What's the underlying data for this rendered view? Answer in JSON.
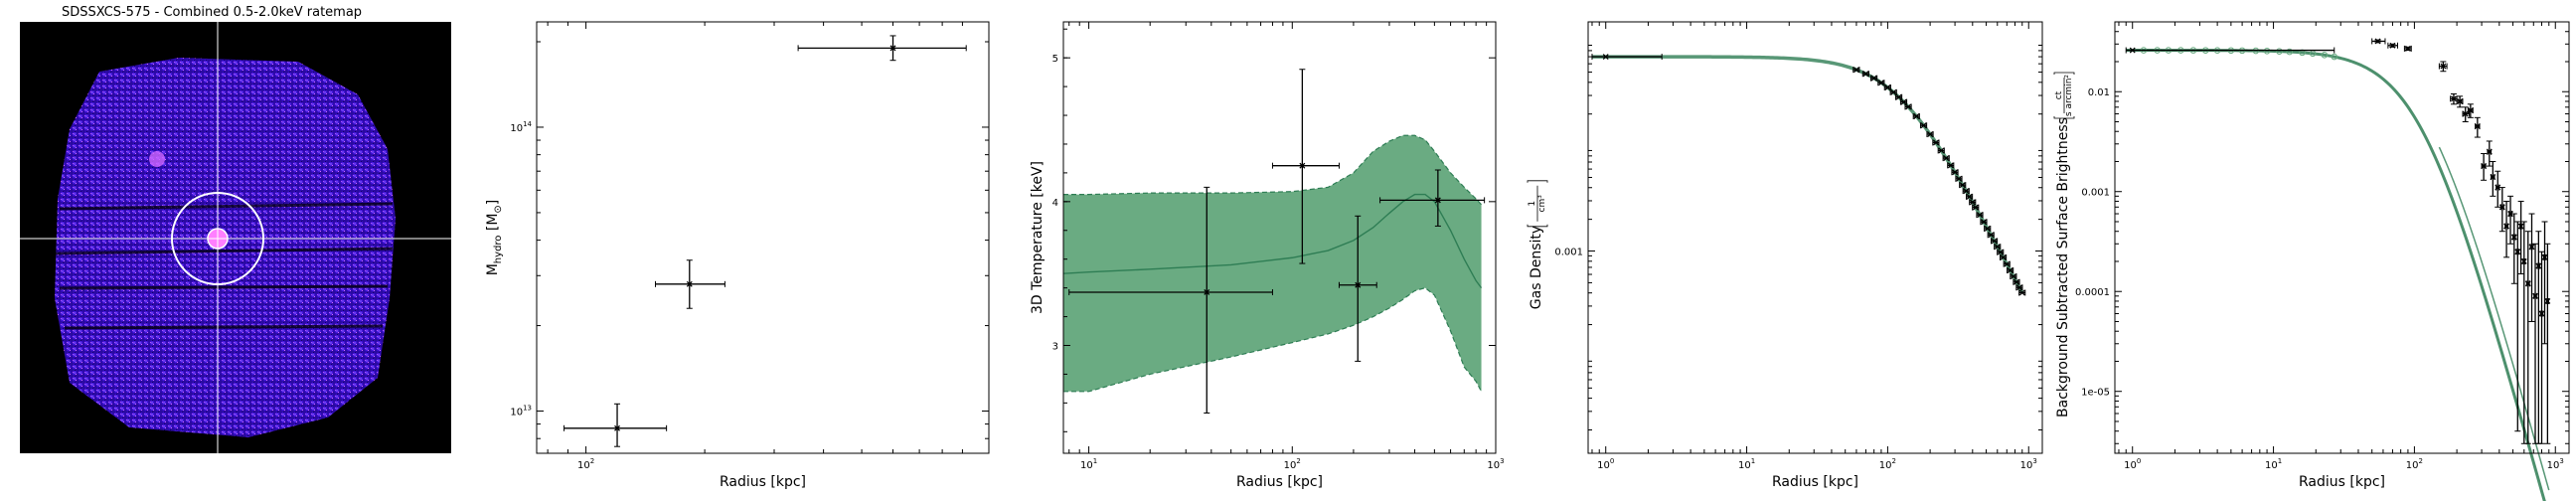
{
  "figure": {
    "panel_count": 5
  },
  "chart_data": [
    {
      "type": "image",
      "title": "SDSSXCS-575 - Combined 0.5-2.0keV ratemap",
      "colormap": "gnuplot2",
      "background_color": "#000000",
      "source_color": "#4a1bff",
      "crosshair_color": "#ffffff",
      "aperture_circles": 2
    },
    {
      "type": "scatter",
      "title": "",
      "xlabel": "Radius [kpc]",
      "ylabel": "M$_{hydro}$ [M$_{\\odot}$]",
      "ylabel_main": "M",
      "ylabel_sub": "hydro",
      "ylabel_unit": " [M",
      "ylabel_unit_sub": "⊙",
      "ylabel_end": "]",
      "xscale": "log",
      "yscale": "log",
      "xlim": [
        75,
        1050
      ],
      "ylim": [
        7100000000000.0,
        235000000000000.0
      ],
      "xticks": [
        {
          "v": 100,
          "label": "10",
          "sup": "2"
        }
      ],
      "yticks": [
        {
          "v": 10000000000000.0,
          "label": "10",
          "sup": "13"
        },
        {
          "v": 100000000000000.0,
          "label": "10",
          "sup": "14"
        }
      ],
      "color": "#000000",
      "points": [
        {
          "x": 120,
          "y": 8700000000000.0,
          "xerr": [
            88,
            160
          ],
          "yerr": [
            7500000000000.0,
            10600000000000.0
          ]
        },
        {
          "x": 183,
          "y": 28000000000000.0,
          "xerr": [
            150,
            225
          ],
          "yerr": [
            23000000000000.0,
            34000000000000.0
          ]
        },
        {
          "x": 600,
          "y": 190000000000000.0,
          "xerr": [
            345,
            920
          ],
          "yerr": [
            172000000000000.0,
            210000000000000.0
          ]
        }
      ]
    },
    {
      "type": "line",
      "title": "",
      "xlabel": "Radius [kpc]",
      "ylabel": "3D Temperature [keV]",
      "xscale": "log",
      "yscale": "linear",
      "xlim": [
        7.5,
        1000
      ],
      "ylim": [
        2.25,
        5.25
      ],
      "xticks": [
        {
          "v": 10,
          "label": "10",
          "sup": "1"
        },
        {
          "v": 100,
          "label": "10",
          "sup": "2"
        },
        {
          "v": 1000,
          "label": "10",
          "sup": "3"
        }
      ],
      "yticks": [
        {
          "v": 3,
          "label": "3"
        },
        {
          "v": 4,
          "label": "4"
        },
        {
          "v": 5,
          "label": "5"
        }
      ],
      "band_color": "#6aab82",
      "line_color": "#2e7d54",
      "model": {
        "x": [
          7.5,
          10,
          20,
          50,
          100,
          150,
          200,
          250,
          300,
          350,
          400,
          450,
          500,
          600,
          700,
          800,
          850
        ],
        "y": [
          3.5,
          3.51,
          3.53,
          3.56,
          3.61,
          3.66,
          3.73,
          3.82,
          3.92,
          4.0,
          4.05,
          4.05,
          4.0,
          3.8,
          3.6,
          3.45,
          3.4
        ],
        "lo": [
          2.68,
          2.68,
          2.8,
          2.92,
          3.02,
          3.08,
          3.14,
          3.2,
          3.26,
          3.32,
          3.38,
          3.4,
          3.35,
          3.1,
          2.85,
          2.75,
          2.68
        ],
        "hi": [
          4.05,
          4.05,
          4.06,
          4.06,
          4.07,
          4.1,
          4.2,
          4.35,
          4.42,
          4.46,
          4.46,
          4.43,
          4.35,
          4.2,
          4.1,
          4.02,
          3.98
        ]
      },
      "points": [
        {
          "x": 38,
          "y": 3.37,
          "xerr": [
            8,
            80
          ],
          "yerr": [
            2.53,
            4.1
          ]
        },
        {
          "x": 112,
          "y": 4.25,
          "xerr": [
            80,
            170
          ],
          "yerr": [
            3.57,
            4.92
          ]
        },
        {
          "x": 210,
          "y": 3.42,
          "xerr": [
            170,
            260
          ],
          "yerr": [
            2.89,
            3.9
          ]
        },
        {
          "x": 520,
          "y": 4.01,
          "xerr": [
            270,
            880
          ],
          "yerr": [
            3.83,
            4.22
          ]
        }
      ]
    },
    {
      "type": "line",
      "title": "",
      "xlabel": "Radius [kpc]",
      "ylabel": "Gas Density",
      "ylabel_unit_num": "1",
      "ylabel_unit_den": "cm³",
      "xscale": "log",
      "yscale": "log",
      "xlim": [
        0.75,
        1250
      ],
      "ylim": [
        1.2e-05,
        0.15
      ],
      "xticks": [
        {
          "v": 1,
          "label": "10",
          "sup": "0"
        },
        {
          "v": 10,
          "label": "10",
          "sup": "1"
        },
        {
          "v": 100,
          "label": "10",
          "sup": "2"
        },
        {
          "v": 1000,
          "label": "10",
          "sup": "3"
        }
      ],
      "yticks": [
        {
          "v": 0.001,
          "label": "0.001"
        }
      ],
      "model": {
        "type": "beta",
        "n0": 0.07,
        "rc": 120,
        "beta": 0.85
      },
      "data_r": [
        1,
        60,
        70,
        80,
        90,
        100,
        110,
        120,
        130,
        140,
        160,
        180,
        200,
        220,
        240,
        260,
        280,
        300,
        320,
        340,
        360,
        380,
        400,
        420,
        450,
        480,
        510,
        540,
        570,
        600,
        630,
        660,
        700,
        740,
        780,
        820,
        860,
        900
      ],
      "data_xerr_first": [
        0.8,
        2.5
      ],
      "line_color": "#2e7d54",
      "point_color": "#000000"
    },
    {
      "type": "line",
      "title": "",
      "xlabel": "Radius [kpc]",
      "ylabel": "Background Subtracted Surface Brightness",
      "ylabel_unit_num": "ct",
      "ylabel_unit_den": "s arcmin²",
      "xscale": "log",
      "yscale": "log",
      "xlim": [
        0.75,
        1250
      ],
      "ylim": [
        2.4e-06,
        0.05
      ],
      "xticks": [
        {
          "v": 1,
          "label": "10",
          "sup": "0"
        },
        {
          "v": 10,
          "label": "10",
          "sup": "1"
        },
        {
          "v": 100,
          "label": "10",
          "sup": "2"
        },
        {
          "v": 1000,
          "label": "10",
          "sup": "3"
        }
      ],
      "yticks": [
        {
          "v": 1e-05,
          "label": "1e-05"
        },
        {
          "v": 0.0001,
          "label": "0.0001"
        },
        {
          "v": 0.001,
          "label": "0.001"
        },
        {
          "v": 0.01,
          "label": "0.01"
        }
      ],
      "model": {
        "type": "beta",
        "s0": 0.026,
        "rc": 110,
        "beta": 0.85
      },
      "flat_points_r": [
        1.2,
        1.5,
        1.8,
        2.2,
        2.7,
        3.3,
        4,
        5,
        6,
        7.5,
        9,
        11,
        13,
        16,
        19,
        23,
        27
      ],
      "points": [
        {
          "x": 1,
          "y": 0.026,
          "xerr": [
            0.9,
            27
          ]
        },
        {
          "x": 55,
          "y": 0.032,
          "xerr": [
            50,
            62
          ],
          "yerr": [
            0.031,
            0.033
          ]
        },
        {
          "x": 70,
          "y": 0.029,
          "xerr": [
            65,
            76
          ],
          "yerr": [
            0.028,
            0.03
          ]
        },
        {
          "x": 90,
          "y": 0.027,
          "xerr": [
            85,
            95
          ],
          "yerr": [
            0.026,
            0.028
          ]
        },
        {
          "x": 160,
          "y": 0.018,
          "xerr": [
            150,
            170
          ],
          "yerr": [
            0.016,
            0.02
          ]
        },
        {
          "x": 190,
          "y": 0.0085,
          "xerr": [
            180,
            200
          ],
          "yerr": [
            0.0075,
            0.0095
          ]
        },
        {
          "x": 210,
          "y": 0.008,
          "xerr": [
            200,
            220
          ],
          "yerr": [
            0.007,
            0.009
          ]
        },
        {
          "x": 230,
          "y": 0.006,
          "xerr": [
            220,
            245
          ],
          "yerr": [
            0.005,
            0.007
          ]
        },
        {
          "x": 250,
          "y": 0.0065,
          "xerr": [
            240,
            260
          ],
          "yerr": [
            0.0055,
            0.0075
          ]
        },
        {
          "x": 280,
          "y": 0.0045,
          "xerr": [
            270,
            290
          ],
          "yerr": [
            0.0035,
            0.0055
          ]
        },
        {
          "x": 310,
          "y": 0.0018,
          "xerr": [
            300,
            320
          ],
          "yerr": [
            0.0013,
            0.0024
          ]
        },
        {
          "x": 340,
          "y": 0.0025,
          "xerr": [
            330,
            350
          ],
          "yerr": [
            0.0018,
            0.0032
          ]
        },
        {
          "x": 360,
          "y": 0.0014,
          "xerr": [
            350,
            370
          ],
          "yerr": [
            0.0009,
            0.002
          ]
        },
        {
          "x": 390,
          "y": 0.0011,
          "xerr": [
            380,
            400
          ],
          "yerr": [
            0.0007,
            0.0016
          ]
        },
        {
          "x": 420,
          "y": 0.0007,
          "xerr": [
            410,
            430
          ],
          "yerr": [
            0.0004,
            0.0011
          ]
        },
        {
          "x": 450,
          "y": 0.00045,
          "xerr": [
            440,
            460
          ],
          "yerr": [
            0.00022,
            0.0008
          ]
        },
        {
          "x": 480,
          "y": 0.0006,
          "xerr": [
            470,
            490
          ],
          "yerr": [
            0.0003,
            0.0009
          ]
        },
        {
          "x": 510,
          "y": 0.00035,
          "xerr": [
            500,
            520
          ],
          "yerr": [
            0.00012,
            0.0006
          ]
        },
        {
          "x": 540,
          "y": 0.00025,
          "xerr": [
            530,
            550
          ],
          "yerr": [
            4e-06,
            0.0005
          ]
        },
        {
          "x": 570,
          "y": 0.00045,
          "xerr": [
            560,
            580
          ],
          "yerr": [
            0.00015,
            0.0008
          ]
        },
        {
          "x": 600,
          "y": 0.0002,
          "xerr": [
            590,
            610
          ],
          "yerr": [
            3e-06,
            0.0005
          ]
        },
        {
          "x": 640,
          "y": 0.00012,
          "xerr": [
            625,
            655
          ],
          "yerr": [
            3e-06,
            0.0004
          ]
        },
        {
          "x": 680,
          "y": 0.00028,
          "xerr": [
            665,
            695
          ],
          "yerr": [
            5e-05,
            0.0006
          ]
        },
        {
          "x": 720,
          "y": 9e-05,
          "xerr": [
            705,
            735
          ],
          "yerr": [
            3e-06,
            0.0003
          ]
        },
        {
          "x": 760,
          "y": 0.00018,
          "xerr": [
            745,
            775
          ],
          "yerr": [
            3e-06,
            0.0004
          ]
        },
        {
          "x": 800,
          "y": 6e-05,
          "xerr": [
            785,
            815
          ],
          "yerr": [
            3e-06,
            0.00025
          ]
        },
        {
          "x": 840,
          "y": 0.00022,
          "xerr": [
            825,
            855
          ],
          "yerr": [
            3e-05,
            0.0005
          ]
        },
        {
          "x": 880,
          "y": 8e-05,
          "xerr": [
            865,
            895
          ],
          "yerr": [
            3e-06,
            0.0003
          ]
        }
      ],
      "line_color": "#2e7d54",
      "point_color": "#000000"
    }
  ]
}
